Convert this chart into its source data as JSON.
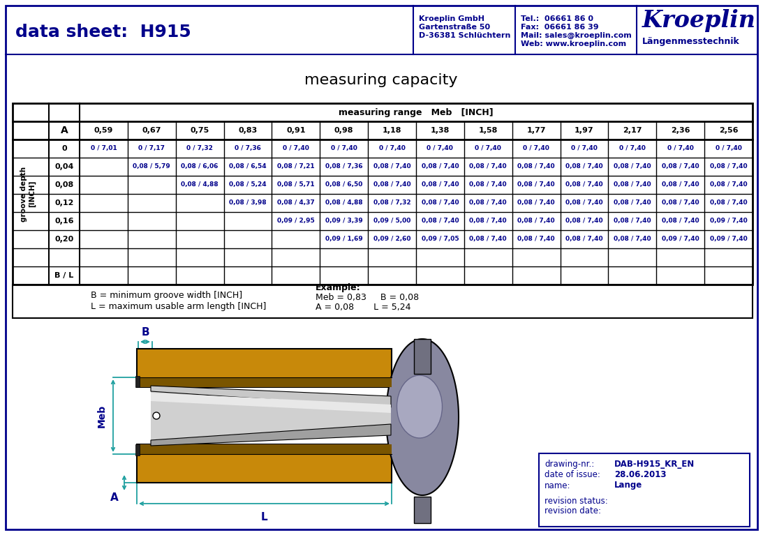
{
  "title": "data sheet:  H915",
  "company_name": "Kroeplin GmbH",
  "company_address": "Gartenstraße 50",
  "company_city": "D-36381 Schlüchtern",
  "tel": "Tel.:  06661 86 0",
  "fax": "Fax:  06661 86 39",
  "mail": "Mail: sales@kroeplin.com",
  "web": "Web: www.kroeplin.com",
  "brand": "Kroeplin",
  "brand_sub": "Längenmesstechnik",
  "table_title": "measuring capacity",
  "table_header_row": "measuring range   Meb   [INCH]",
  "col_headers": [
    "0,59",
    "0,67",
    "0,75",
    "0,83",
    "0,91",
    "0,98",
    "1,18",
    "1,38",
    "1,58",
    "1,77",
    "1,97",
    "2,17",
    "2,36",
    "2,56"
  ],
  "row_headers": [
    "0",
    "0,04",
    "0,08",
    "0,12",
    "0,16",
    "0,20"
  ],
  "table_data": [
    [
      "0 / 7,01",
      "0 / 7,17",
      "0 / 7,32",
      "0 / 7,36",
      "0 / 7,40",
      "0 / 7,40",
      "0 / 7,40",
      "0 / 7,40",
      "0 / 7,40",
      "0 / 7,40",
      "0 / 7,40",
      "0 / 7,40",
      "0 / 7,40",
      "0 / 7,40"
    ],
    [
      "",
      "0,08 / 5,79",
      "0,08 / 6,06",
      "0,08 / 6,54",
      "0,08 / 7,21",
      "0,08 / 7,36",
      "0,08 / 7,40",
      "0,08 / 7,40",
      "0,08 / 7,40",
      "0,08 / 7,40",
      "0,08 / 7,40",
      "0,08 / 7,40",
      "0,08 / 7,40",
      "0,08 / 7,40"
    ],
    [
      "",
      "",
      "0,08 / 4,88",
      "0,08 / 5,24",
      "0,08 / 5,71",
      "0,08 / 6,50",
      "0,08 / 7,40",
      "0,08 / 7,40",
      "0,08 / 7,40",
      "0,08 / 7,40",
      "0,08 / 7,40",
      "0,08 / 7,40",
      "0,08 / 7,40",
      "0,08 / 7,40"
    ],
    [
      "",
      "",
      "",
      "0,08 / 3,98",
      "0,08 / 4,37",
      "0,08 / 4,88",
      "0,08 / 7,32",
      "0,08 / 7,40",
      "0,08 / 7,40",
      "0,08 / 7,40",
      "0,08 / 7,40",
      "0,08 / 7,40",
      "0,08 / 7,40",
      "0,08 / 7,40"
    ],
    [
      "",
      "",
      "",
      "",
      "0,09 / 2,95",
      "0,09 / 3,39",
      "0,09 / 5,00",
      "0,08 / 7,40",
      "0,08 / 7,40",
      "0,08 / 7,40",
      "0,08 / 7,40",
      "0,08 / 7,40",
      "0,08 / 7,40",
      "0,09 / 7,40"
    ],
    [
      "",
      "",
      "",
      "",
      "",
      "0,09 / 1,69",
      "0,09 / 2,60",
      "0,09 / 7,05",
      "0,08 / 7,40",
      "0,08 / 7,40",
      "0,08 / 7,40",
      "0,08 / 7,40",
      "0,09 / 7,40",
      "0,09 / 7,40"
    ]
  ],
  "bl_label": "B / L",
  "note_b": "B = minimum groove width [INCH]",
  "note_l": "L = maximum usable arm length [INCH]",
  "example_label": "Example:",
  "example_line1": "Meb = 0,83     B = 0,08",
  "example_line2": "A = 0,08       L = 5,24",
  "drawing_nr_label": "drawing-nr.:",
  "drawing_nr_value": "DAB-H915_KR_EN",
  "date_label": "date of issue:",
  "date_value": "28.06.2013",
  "name_label": "name:",
  "name_value": "Lange",
  "rev_status_label": "revision status:",
  "rev_date_label": "revision date:",
  "navy": "#00008B",
  "teal": "#20A0A0",
  "body_color": "#C8890A",
  "dark_body": "#7A5500",
  "arm_color": "#B8B8B8",
  "arm_hi_color": "#E0E0E0",
  "gauge_color": "#8888A0",
  "gauge_light": "#A8A8C0"
}
